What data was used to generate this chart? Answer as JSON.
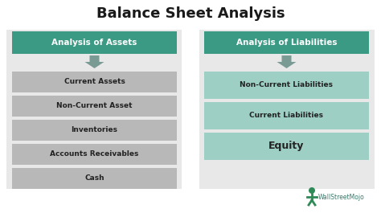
{
  "title": "Balance Sheet Analysis",
  "title_fontsize": 13,
  "title_fontweight": "bold",
  "background_color": "#ffffff",
  "panel_bg_color": "#e8e8e8",
  "header_bg_color": "#3a9a84",
  "header_text_color": "#ffffff",
  "header_font_size": 7.5,
  "left_header": "Analysis of Assets",
  "right_header": "Analysis of Liabilities",
  "left_items": [
    "Current Assets",
    "Non-Current Asset",
    "Inventories",
    "Accounts Receivables",
    "Cash"
  ],
  "right_items": [
    "Non-Current Liabilities",
    "Current Liabilities",
    "Equity"
  ],
  "left_item_bg": "#b8b8b8",
  "right_item_bg": "#9dcfc4",
  "item_text_color": "#222222",
  "item_font_size": 6.5,
  "item_font_weight": "bold",
  "equity_font_size": 9,
  "equity_font_weight": "bold",
  "arrow_color": "#7a9a94",
  "watermark_text": "WallStreetMojo",
  "watermark_color": "#3a7a6a",
  "watermark_fontsize": 5.5
}
